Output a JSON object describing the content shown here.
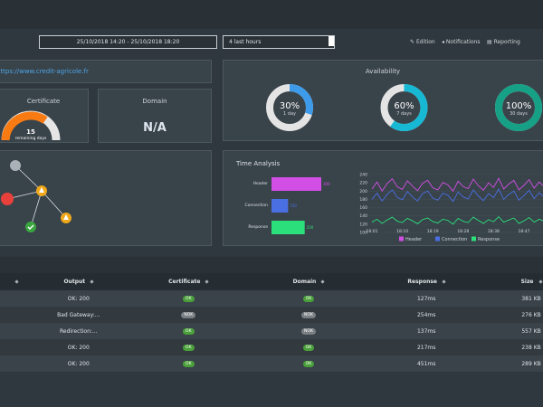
{
  "toolbar": {
    "date_range": "25/10/2018 14:20 - 25/10/2018 18:20",
    "period": "4 last hours",
    "links": [
      "Edition",
      "Notifications",
      "Reporting"
    ]
  },
  "url": "https://www.credit-agricole.fr",
  "certificate": {
    "title": "Certificate",
    "days": 15,
    "days_label": "remaining days"
  },
  "domain": {
    "title": "Domain",
    "value": "N/A"
  },
  "availability": {
    "title": "Availability",
    "type": "donut",
    "values": [
      30,
      60,
      100
    ],
    "value_labels": [
      "30%",
      "60%",
      "100%"
    ],
    "labels": [
      "1 day",
      "7 days",
      "30 days"
    ],
    "colors": [
      "#3d9be9",
      "#17b8d4",
      "#16a085"
    ]
  },
  "chart_data": [
    {
      "type": "bar",
      "title": "Time Analysis",
      "categories": [
        "Header",
        "Connection",
        "Response"
      ],
      "values": [
        300,
        100,
        200
      ],
      "colors": [
        "#d24fe6",
        "#4a6fe3",
        "#2be07a"
      ]
    },
    {
      "type": "line",
      "categories": [
        "18:01",
        null,
        null,
        null,
        null,
        null,
        "18:10",
        null,
        null,
        null,
        null,
        null,
        "18:19",
        null,
        null,
        null,
        null,
        null,
        "18:28",
        null,
        null,
        null,
        null,
        null,
        "18:38",
        null,
        null,
        null,
        null,
        null,
        "18:47",
        null,
        null,
        null,
        null,
        null
      ],
      "ylim": [
        100,
        240
      ],
      "yticks": [
        100,
        120,
        140,
        160,
        180,
        200,
        220,
        240
      ],
      "series": [
        {
          "name": "Header",
          "color": "#d24fe6",
          "values": [
            205,
            222,
            200,
            218,
            230,
            210,
            204,
            225,
            212,
            201,
            219,
            226,
            208,
            203,
            221,
            215,
            200,
            224,
            211,
            206,
            229,
            213,
            202,
            220,
            209,
            231,
            205,
            217,
            226,
            203,
            214,
            228,
            207,
            222,
            210,
            219
          ]
        },
        {
          "name": "Connection",
          "color": "#4a6fe3",
          "values": [
            180,
            195,
            176,
            192,
            203,
            185,
            179,
            199,
            186,
            176,
            194,
            200,
            183,
            178,
            195,
            190,
            175,
            198,
            186,
            181,
            203,
            188,
            177,
            194,
            184,
            205,
            180,
            192,
            200,
            178,
            189,
            202,
            182,
            196,
            185,
            193
          ]
        },
        {
          "name": "Response",
          "color": "#2be07a",
          "values": [
            125,
            132,
            122,
            130,
            137,
            127,
            124,
            134,
            128,
            121,
            131,
            135,
            126,
            123,
            132,
            129,
            120,
            134,
            127,
            124,
            137,
            129,
            122,
            131,
            126,
            138,
            125,
            130,
            135,
            122,
            128,
            136,
            125,
            132,
            127,
            130
          ]
        }
      ]
    }
  ],
  "table": {
    "columns": [
      "Output",
      "Certificate",
      "Domain",
      "Response",
      "Size"
    ],
    "rows": [
      [
        "OK: 200",
        "OK",
        "OK",
        "127ms",
        "381 KB"
      ],
      [
        "Bad Gateway:...",
        "NOK",
        "NOK",
        "254ms",
        "276 KB"
      ],
      [
        "Redirection:...",
        "OK",
        "NOK",
        "137ms",
        "557 KB"
      ],
      [
        "OK: 200",
        "OK",
        "OK",
        "217ms",
        "238 KB"
      ],
      [
        "OK: 200",
        "OK",
        "OK",
        "451ms",
        "289 KB"
      ]
    ]
  }
}
